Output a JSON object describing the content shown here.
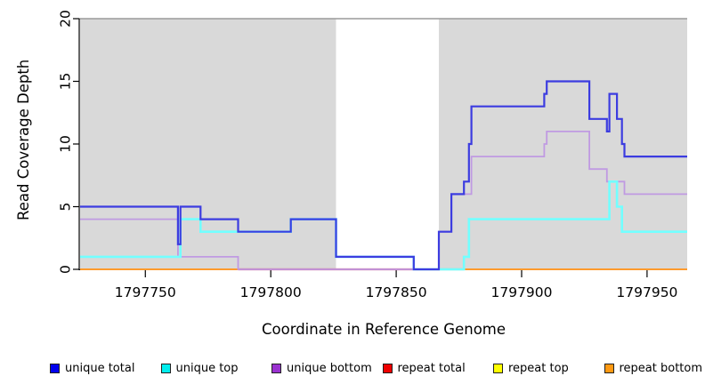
{
  "figure": {
    "xlabel": "Coordinate in Reference Genome",
    "ylabel": "Read Coverage Depth"
  },
  "chart_data": {
    "type": "line",
    "subtype": "step-coverage-plot",
    "title": "",
    "xlabel": "Coordinate in Reference Genome",
    "ylabel": "Read Coverage Depth",
    "xlim": [
      1797724,
      1797966
    ],
    "ylim": [
      0,
      20
    ],
    "xticks": [
      1797750,
      1797800,
      1797850,
      1797900,
      1797950
    ],
    "yticks": [
      0,
      5,
      10,
      15,
      20
    ],
    "grid": false,
    "legend_position": "bottom",
    "plot_bg_color": "#ffffff",
    "band_color": "#d9d9d9",
    "background_bands": [
      {
        "from": 1797724,
        "to": 1797826,
        "color": "#d9d9d9"
      },
      {
        "from": 1797867,
        "to": 1797966,
        "color": "#d9d9d9"
      }
    ],
    "top_boundary_line": {
      "y": 20,
      "color": "#9a9a9a"
    },
    "series": [
      {
        "name": "repeat total",
        "layer": 1,
        "color": "#dd0000",
        "line_width": 2,
        "points": [
          [
            1797724,
            0
          ]
        ]
      },
      {
        "name": "repeat top",
        "layer": 1,
        "color": "#ffff00",
        "line_width": 2,
        "points": [
          [
            1797724,
            0
          ]
        ]
      },
      {
        "name": "repeat bottom",
        "layer": 1,
        "color": "#ff9b2e",
        "line_width": 2,
        "points": [
          [
            1797724,
            0
          ]
        ]
      },
      {
        "name": "unique bottom",
        "layer": 3,
        "color": "#c09ae2",
        "line_width": 1.8,
        "points": [
          [
            1797724,
            4
          ],
          [
            1797763,
            1
          ],
          [
            1797787,
            0
          ],
          [
            1797867,
            3
          ],
          [
            1797872,
            6
          ],
          [
            1797880,
            9
          ],
          [
            1797909,
            10
          ],
          [
            1797910,
            11
          ],
          [
            1797927,
            8
          ],
          [
            1797934,
            7
          ],
          [
            1797941,
            6
          ]
        ]
      },
      {
        "name": "unique top",
        "layer": 3,
        "color": "#72ffff",
        "line_width": 2.6,
        "points": [
          [
            1797724,
            1
          ],
          [
            1797764,
            4
          ],
          [
            1797772,
            3
          ],
          [
            1797808,
            4
          ],
          [
            1797826,
            1
          ],
          [
            1797857,
            0
          ],
          [
            1797877,
            1
          ],
          [
            1797879,
            4
          ],
          [
            1797935,
            7
          ],
          [
            1797938,
            5
          ],
          [
            1797940,
            3
          ]
        ]
      },
      {
        "name": "unique total",
        "layer": 3,
        "color": "#3c3ce0",
        "line_width": 2.2,
        "points": [
          [
            1797724,
            5
          ],
          [
            1797763,
            2
          ],
          [
            1797764,
            5
          ],
          [
            1797772,
            4
          ],
          [
            1797787,
            3
          ],
          [
            1797808,
            4
          ],
          [
            1797826,
            1
          ],
          [
            1797857,
            0
          ],
          [
            1797867,
            3
          ],
          [
            1797872,
            6
          ],
          [
            1797877,
            7
          ],
          [
            1797879,
            10
          ],
          [
            1797880,
            13
          ],
          [
            1797909,
            14
          ],
          [
            1797910,
            15
          ],
          [
            1797927,
            12
          ],
          [
            1797934,
            11
          ],
          [
            1797935,
            14
          ],
          [
            1797938,
            12
          ],
          [
            1797940,
            10
          ],
          [
            1797941,
            9
          ]
        ]
      }
    ],
    "bottom_blend_overlays": [
      {
        "from": 1797787,
        "to": 1797867,
        "color": "#d6527a"
      },
      {
        "from": 1797867,
        "to": 1797877,
        "color": "#8fbf9f"
      }
    ]
  },
  "legend": {
    "items": [
      {
        "label": "unique total",
        "color": "#0000ee"
      },
      {
        "label": "unique top",
        "color": "#00eeee"
      },
      {
        "label": "unique bottom",
        "color": "#9a32d0"
      },
      {
        "label": "repeat total",
        "color": "#ee0000"
      },
      {
        "label": "repeat top",
        "color": "#ffff00"
      },
      {
        "label": "repeat bottom",
        "color": "#ff9912"
      }
    ]
  }
}
